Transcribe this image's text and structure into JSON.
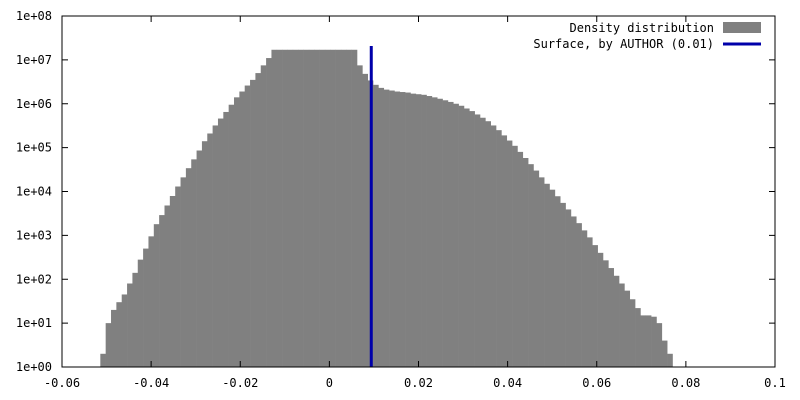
{
  "chart_data": {
    "type": "bar",
    "xlim": [
      -0.06,
      0.1
    ],
    "ylim": [
      1,
      100000000
    ],
    "y_scale": "log",
    "grid": false,
    "legend_position": "top-right",
    "x_ticks": [
      {
        "value": -0.06,
        "label": "-0.06"
      },
      {
        "value": -0.04,
        "label": "-0.04"
      },
      {
        "value": -0.02,
        "label": "-0.02"
      },
      {
        "value": 0,
        "label": "0"
      },
      {
        "value": 0.02,
        "label": "0.02"
      },
      {
        "value": 0.04,
        "label": "0.04"
      },
      {
        "value": 0.06,
        "label": "0.06"
      },
      {
        "value": 0.08,
        "label": "0.08"
      },
      {
        "value": 0.1,
        "label": "0.1"
      }
    ],
    "y_ticks": [
      {
        "value": 1,
        "label": "1e+00"
      },
      {
        "value": 10,
        "label": "1e+01"
      },
      {
        "value": 100,
        "label": "1e+02"
      },
      {
        "value": 1000,
        "label": "1e+03"
      },
      {
        "value": 10000,
        "label": "1e+04"
      },
      {
        "value": 100000,
        "label": "1e+05"
      },
      {
        "value": 1000000,
        "label": "1e+06"
      },
      {
        "value": 10000000,
        "label": "1e+07"
      },
      {
        "value": 100000000,
        "label": "1e+08"
      }
    ],
    "histogram": {
      "name": "Density distribution",
      "color": "#808080",
      "bin_start": -0.0514,
      "bin_width": 0.0012,
      "counts": [
        2,
        10,
        20,
        30,
        45,
        80,
        140,
        280,
        500,
        950,
        1800,
        2900,
        4800,
        7900,
        13000,
        21000,
        34000,
        54000,
        86000,
        140000,
        210000,
        320000,
        460000,
        650000,
        950000,
        1400000,
        1900000,
        2600000,
        3500000,
        5000000,
        7500000,
        11000000,
        17000000,
        17000000,
        17000000,
        17000000,
        17000000,
        17000000,
        17000000,
        17000000,
        17000000,
        17000000,
        17000000,
        17000000,
        17000000,
        17000000,
        17000000,
        17000000,
        7500000,
        4800000,
        3400000,
        2700000,
        2300000,
        2100000,
        2000000,
        1900000,
        1850000,
        1800000,
        1700000,
        1650000,
        1600000,
        1500000,
        1400000,
        1300000,
        1200000,
        1100000,
        1000000,
        900000,
        780000,
        680000,
        570000,
        480000,
        400000,
        320000,
        250000,
        190000,
        145000,
        110000,
        80000,
        58000,
        42000,
        30000,
        21000,
        15000,
        11000,
        7800,
        5500,
        3900,
        2700,
        1900,
        1300,
        900,
        600,
        400,
        270,
        180,
        120,
        80,
        55,
        35,
        22,
        15,
        15,
        14,
        10,
        4,
        2
      ]
    },
    "vline": {
      "name": "Surface, by AUTHOR (0.01)",
      "x": 0.0094,
      "color": "#0000aa"
    }
  }
}
